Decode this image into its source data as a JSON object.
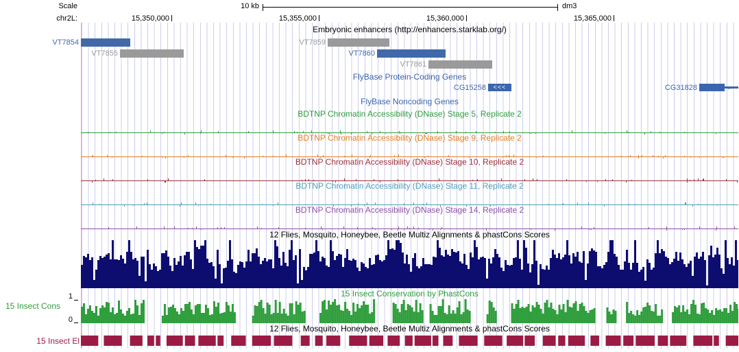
{
  "header": {
    "scale_label": "Scale",
    "scale_value": "10 kb",
    "assembly": "dm3",
    "chromosome": "chr2L:",
    "ruler_ticks": [
      {
        "label": "15,350,000",
        "pct": 13.76
      },
      {
        "label": "15,355,000",
        "pct": 36.18
      },
      {
        "label": "15,360,000",
        "pct": 58.6
      },
      {
        "label": "15,365,000",
        "pct": 81.02
      }
    ]
  },
  "enhancer_track": {
    "title": "Embryonic enhancers (http://enhancers.starklab.org/)",
    "colors": {
      "positive": "#4169aa",
      "neutral": "#9a9a9a"
    },
    "items": [
      {
        "name": "VT7854",
        "row": 0,
        "start_pct": 0.0,
        "width_pct": 7.51,
        "tone": "positive"
      },
      {
        "name": "VT7855",
        "row": 1,
        "start_pct": 5.94,
        "width_pct": 9.7,
        "tone": "neutral"
      },
      {
        "name": "VT7859",
        "row": 0,
        "start_pct": 37.54,
        "width_pct": 9.38,
        "tone": "neutral"
      },
      {
        "name": "VT7860",
        "row": 1,
        "start_pct": 45.05,
        "width_pct": 10.43,
        "tone": "positive"
      },
      {
        "name": "VT7861",
        "row": 2,
        "start_pct": 52.87,
        "width_pct": 9.7,
        "tone": "neutral"
      }
    ]
  },
  "coding_genes": {
    "title": "FlyBase Protein-Coding Genes",
    "color": "#3a66ad",
    "items": [
      {
        "name": "CG15258",
        "start_pct": 61.94,
        "width_pct": 3.54,
        "strand_glyph": "<<<",
        "tail": false,
        "tail_glyph": ""
      },
      {
        "name": "CG31828",
        "start_pct": 94.05,
        "width_pct": 3.86,
        "strand_glyph": "",
        "tail": true,
        "tail_glyph": "←"
      }
    ]
  },
  "noncoding_genes": {
    "title": "FlyBase Noncoding Genes",
    "color": "#3a66ad"
  },
  "bdtnp_tracks": [
    {
      "title": "BDTNP Chromatin Accessibility (DNase) Stage 5, Replicate 2",
      "color": "#2f9e3c"
    },
    {
      "title": "BDTNP Chromatin Accessibility (DNase) Stage 9, Replicate 2",
      "color": "#e67e22"
    },
    {
      "title": "BDTNP Chromatin Accessibility (DNase) Stage 10, Replicate 2",
      "color": "#9e3039"
    },
    {
      "title": "BDTNP Chromatin Accessibility (DNase) Stage 11, Replicate 2",
      "color": "#4d9fba"
    },
    {
      "title": "BDTNP Chromatin Accessibility (DNase) Stage 14, Replicate 2",
      "color": "#8e4fa5"
    }
  ],
  "multiz": {
    "title": "12 Flies, Mosquito, Honeybee, Beetle Multiz Alignments & phastCons Scores",
    "color": "#0d0d70"
  },
  "conservation": {
    "title": "15 Insect Conservation by PhastCons",
    "left_label": "15 Insect Cons",
    "axis_max": "1",
    "axis_min": "0",
    "color": "#2f9e3c"
  },
  "elements_track": {
    "title": "12 Flies, Mosquito, Honeybee, Beetle Multiz Alignments & phastCons Scores",
    "left_label": "15 Insect El",
    "color": "#9b1b44"
  },
  "grid": {
    "line_color": "#ccccee",
    "left_edge_color": "#ffa0a0"
  },
  "noise": {
    "seed": 1337
  }
}
